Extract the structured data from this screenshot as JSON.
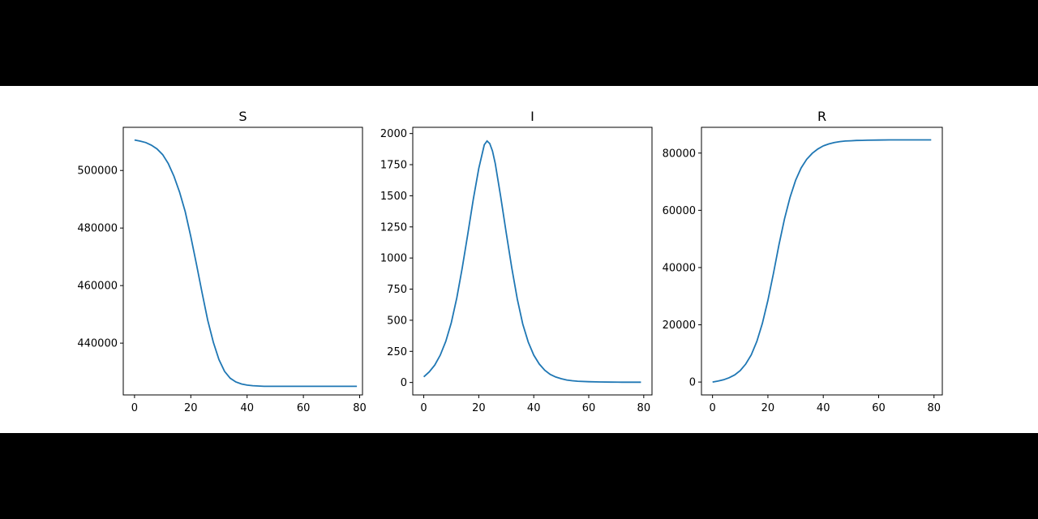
{
  "colors": {
    "background_band": "#000000",
    "figure_background": "#ffffff",
    "series_color": "#1f77b4",
    "axes_color": "#000000"
  },
  "chart_data": [
    {
      "type": "line",
      "title": "S",
      "xlabel": "",
      "ylabel": "",
      "xlim": [
        -4,
        81
      ],
      "ylim": [
        422000,
        515000
      ],
      "xticks": [
        0,
        20,
        40,
        60,
        80
      ],
      "yticks": [
        440000,
        460000,
        480000,
        500000
      ],
      "grid": false,
      "x": [
        0,
        2,
        4,
        6,
        8,
        10,
        12,
        14,
        16,
        18,
        20,
        22,
        24,
        26,
        28,
        30,
        32,
        34,
        36,
        38,
        40,
        42,
        44,
        46,
        48,
        50,
        52,
        54,
        56,
        60,
        64,
        68,
        72,
        76,
        79
      ],
      "series": [
        {
          "values": [
            510600,
            510200,
            509700,
            508800,
            507500,
            505500,
            502400,
            498000,
            492500,
            485700,
            477000,
            467500,
            457500,
            448000,
            440300,
            434300,
            430200,
            427800,
            426500,
            425800,
            425400,
            425200,
            425100,
            425000,
            425000,
            425000,
            425000,
            425000,
            425000,
            425000,
            425000,
            425000,
            425000,
            425000,
            425000
          ]
        }
      ]
    },
    {
      "type": "line",
      "title": "I",
      "xlabel": "",
      "ylabel": "",
      "xlim": [
        -4,
        83
      ],
      "ylim": [
        -100,
        2050
      ],
      "xticks": [
        0,
        20,
        40,
        60,
        80
      ],
      "yticks": [
        0,
        250,
        500,
        750,
        1000,
        1250,
        1500,
        1750,
        2000
      ],
      "grid": false,
      "x": [
        0,
        2,
        4,
        6,
        8,
        10,
        12,
        14,
        16,
        18,
        20,
        22,
        23,
        24,
        25,
        26,
        28,
        30,
        32,
        34,
        36,
        38,
        40,
        42,
        44,
        46,
        48,
        50,
        52,
        54,
        56,
        60,
        64,
        68,
        72,
        76,
        79
      ],
      "series": [
        {
          "values": [
            45,
            85,
            140,
            220,
            330,
            480,
            680,
            920,
            1190,
            1470,
            1720,
            1910,
            1940,
            1920,
            1860,
            1760,
            1490,
            1200,
            920,
            670,
            470,
            325,
            220,
            148,
            98,
            65,
            44,
            30,
            20,
            14,
            10,
            6,
            4,
            3,
            2,
            2,
            2
          ]
        }
      ]
    },
    {
      "type": "line",
      "title": "R",
      "xlabel": "",
      "ylabel": "",
      "xlim": [
        -4,
        83
      ],
      "ylim": [
        -4500,
        89000
      ],
      "xticks": [
        0,
        20,
        40,
        60,
        80
      ],
      "yticks": [
        0,
        20000,
        40000,
        60000,
        80000
      ],
      "grid": false,
      "x": [
        0,
        2,
        4,
        6,
        8,
        10,
        12,
        14,
        16,
        18,
        20,
        22,
        24,
        26,
        28,
        30,
        32,
        34,
        36,
        38,
        40,
        42,
        44,
        46,
        48,
        50,
        52,
        54,
        56,
        60,
        64,
        68,
        72,
        76,
        79
      ],
      "series": [
        {
          "values": [
            0,
            350,
            800,
            1500,
            2500,
            4000,
            6300,
            9500,
            14200,
            20500,
            28500,
            38000,
            48000,
            57000,
            64500,
            70500,
            74800,
            77800,
            79900,
            81400,
            82500,
            83200,
            83700,
            84000,
            84200,
            84300,
            84400,
            84450,
            84500,
            84550,
            84600,
            84600,
            84600,
            84600,
            84600
          ]
        }
      ]
    }
  ]
}
